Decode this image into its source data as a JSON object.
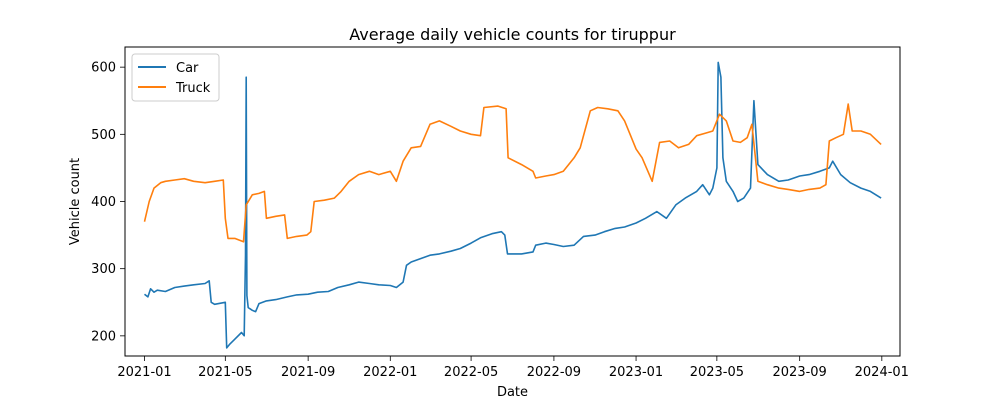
{
  "chart_data": {
    "type": "line",
    "title": "Average daily vehicle counts for tiruppur",
    "xlabel": "Date",
    "ylabel": "Vehicle count",
    "x_ticks": [
      "2021-01",
      "2021-05",
      "2021-09",
      "2022-01",
      "2022-05",
      "2022-09",
      "2023-01",
      "2023-05",
      "2023-09",
      "2024-01"
    ],
    "y_ticks": [
      200,
      300,
      400,
      500,
      600
    ],
    "xlim": [
      "2020-12-03",
      "2024-01-28"
    ],
    "ylim": [
      170,
      630
    ],
    "legend_position": "upper-left",
    "grid": false,
    "series": [
      {
        "name": "Car",
        "color": "#1f77b4",
        "points": [
          [
            "2021-01-01",
            262
          ],
          [
            "2021-01-06",
            258
          ],
          [
            "2021-01-10",
            270
          ],
          [
            "2021-01-15",
            265
          ],
          [
            "2021-01-20",
            268
          ],
          [
            "2021-02-01",
            266
          ],
          [
            "2021-02-15",
            272
          ],
          [
            "2021-03-01",
            274
          ],
          [
            "2021-03-15",
            276
          ],
          [
            "2021-04-01",
            278
          ],
          [
            "2021-04-07",
            282
          ],
          [
            "2021-04-10",
            250
          ],
          [
            "2021-04-15",
            247
          ],
          [
            "2021-05-01",
            250
          ],
          [
            "2021-05-03",
            182
          ],
          [
            "2021-05-08",
            188
          ],
          [
            "2021-05-15",
            195
          ],
          [
            "2021-05-25",
            205
          ],
          [
            "2021-05-29",
            200
          ],
          [
            "2021-05-31",
            320
          ],
          [
            "2021-06-01",
            585
          ],
          [
            "2021-06-02",
            260
          ],
          [
            "2021-06-04",
            242
          ],
          [
            "2021-06-10",
            238
          ],
          [
            "2021-06-15",
            236
          ],
          [
            "2021-06-20",
            248
          ],
          [
            "2021-07-01",
            252
          ],
          [
            "2021-07-15",
            254
          ],
          [
            "2021-08-01",
            258
          ],
          [
            "2021-08-15",
            261
          ],
          [
            "2021-09-01",
            262
          ],
          [
            "2021-09-15",
            265
          ],
          [
            "2021-10-01",
            266
          ],
          [
            "2021-10-15",
            272
          ],
          [
            "2021-11-01",
            276
          ],
          [
            "2021-11-15",
            280
          ],
          [
            "2021-12-01",
            278
          ],
          [
            "2021-12-15",
            276
          ],
          [
            "2022-01-01",
            275
          ],
          [
            "2022-01-10",
            272
          ],
          [
            "2022-01-20",
            280
          ],
          [
            "2022-01-25",
            305
          ],
          [
            "2022-02-01",
            310
          ],
          [
            "2022-02-15",
            315
          ],
          [
            "2022-03-01",
            320
          ],
          [
            "2022-03-15",
            322
          ],
          [
            "2022-04-01",
            326
          ],
          [
            "2022-04-15",
            330
          ],
          [
            "2022-05-01",
            338
          ],
          [
            "2022-05-15",
            346
          ],
          [
            "2022-06-01",
            352
          ],
          [
            "2022-06-15",
            355
          ],
          [
            "2022-06-20",
            350
          ],
          [
            "2022-06-24",
            322
          ],
          [
            "2022-07-15",
            322
          ],
          [
            "2022-08-01",
            325
          ],
          [
            "2022-08-05",
            335
          ],
          [
            "2022-08-20",
            338
          ],
          [
            "2022-09-01",
            336
          ],
          [
            "2022-09-15",
            333
          ],
          [
            "2022-10-01",
            335
          ],
          [
            "2022-10-15",
            348
          ],
          [
            "2022-11-01",
            350
          ],
          [
            "2022-11-15",
            355
          ],
          [
            "2022-12-01",
            360
          ],
          [
            "2022-12-15",
            362
          ],
          [
            "2023-01-01",
            368
          ],
          [
            "2023-01-15",
            375
          ],
          [
            "2023-02-01",
            385
          ],
          [
            "2023-02-15",
            375
          ],
          [
            "2023-03-01",
            395
          ],
          [
            "2023-03-15",
            405
          ],
          [
            "2023-04-01",
            415
          ],
          [
            "2023-04-10",
            425
          ],
          [
            "2023-04-20",
            410
          ],
          [
            "2023-04-25",
            420
          ],
          [
            "2023-05-01",
            450
          ],
          [
            "2023-05-03",
            607
          ],
          [
            "2023-05-07",
            585
          ],
          [
            "2023-05-10",
            465
          ],
          [
            "2023-05-15",
            430
          ],
          [
            "2023-05-25",
            415
          ],
          [
            "2023-06-01",
            400
          ],
          [
            "2023-06-10",
            405
          ],
          [
            "2023-06-20",
            420
          ],
          [
            "2023-06-25",
            550
          ],
          [
            "2023-07-01",
            455
          ],
          [
            "2023-07-15",
            440
          ],
          [
            "2023-08-01",
            430
          ],
          [
            "2023-08-15",
            432
          ],
          [
            "2023-09-01",
            438
          ],
          [
            "2023-09-15",
            440
          ],
          [
            "2023-10-01",
            445
          ],
          [
            "2023-10-15",
            450
          ],
          [
            "2023-10-20",
            460
          ],
          [
            "2023-11-01",
            440
          ],
          [
            "2023-11-15",
            428
          ],
          [
            "2023-12-01",
            420
          ],
          [
            "2023-12-15",
            415
          ],
          [
            "2023-12-31",
            405
          ]
        ]
      },
      {
        "name": "Truck",
        "color": "#ff7f0e",
        "points": [
          [
            "2021-01-01",
            370
          ],
          [
            "2021-01-08",
            400
          ],
          [
            "2021-01-15",
            420
          ],
          [
            "2021-01-25",
            428
          ],
          [
            "2021-02-01",
            430
          ],
          [
            "2021-02-15",
            432
          ],
          [
            "2021-03-01",
            434
          ],
          [
            "2021-03-15",
            430
          ],
          [
            "2021-04-01",
            428
          ],
          [
            "2021-04-15",
            430
          ],
          [
            "2021-04-28",
            432
          ],
          [
            "2021-05-01",
            375
          ],
          [
            "2021-05-05",
            345
          ],
          [
            "2021-05-15",
            345
          ],
          [
            "2021-05-28",
            340
          ],
          [
            "2021-06-01",
            395
          ],
          [
            "2021-06-10",
            410
          ],
          [
            "2021-06-20",
            412
          ],
          [
            "2021-06-28",
            415
          ],
          [
            "2021-07-01",
            375
          ],
          [
            "2021-07-15",
            378
          ],
          [
            "2021-07-28",
            380
          ],
          [
            "2021-08-01",
            345
          ],
          [
            "2021-08-15",
            348
          ],
          [
            "2021-08-30",
            350
          ],
          [
            "2021-09-05",
            355
          ],
          [
            "2021-09-10",
            400
          ],
          [
            "2021-09-25",
            402
          ],
          [
            "2021-10-10",
            405
          ],
          [
            "2021-10-20",
            415
          ],
          [
            "2021-11-01",
            430
          ],
          [
            "2021-11-15",
            440
          ],
          [
            "2021-12-01",
            445
          ],
          [
            "2021-12-15",
            440
          ],
          [
            "2022-01-01",
            445
          ],
          [
            "2022-01-10",
            430
          ],
          [
            "2022-01-20",
            460
          ],
          [
            "2022-02-01",
            480
          ],
          [
            "2022-02-15",
            482
          ],
          [
            "2022-03-01",
            515
          ],
          [
            "2022-03-15",
            520
          ],
          [
            "2022-04-01",
            512
          ],
          [
            "2022-04-15",
            505
          ],
          [
            "2022-05-01",
            500
          ],
          [
            "2022-05-15",
            498
          ],
          [
            "2022-05-20",
            540
          ],
          [
            "2022-06-10",
            542
          ],
          [
            "2022-06-22",
            538
          ],
          [
            "2022-06-25",
            465
          ],
          [
            "2022-07-15",
            455
          ],
          [
            "2022-08-01",
            445
          ],
          [
            "2022-08-05",
            435
          ],
          [
            "2022-08-20",
            438
          ],
          [
            "2022-09-01",
            440
          ],
          [
            "2022-09-15",
            445
          ],
          [
            "2022-10-01",
            465
          ],
          [
            "2022-10-10",
            480
          ],
          [
            "2022-10-25",
            535
          ],
          [
            "2022-11-05",
            540
          ],
          [
            "2022-11-20",
            538
          ],
          [
            "2022-12-05",
            535
          ],
          [
            "2022-12-15",
            520
          ],
          [
            "2023-01-01",
            478
          ],
          [
            "2023-01-10",
            465
          ],
          [
            "2023-01-25",
            430
          ],
          [
            "2023-02-05",
            488
          ],
          [
            "2023-02-20",
            490
          ],
          [
            "2023-03-05",
            480
          ],
          [
            "2023-03-20",
            485
          ],
          [
            "2023-04-01",
            498
          ],
          [
            "2023-04-15",
            502
          ],
          [
            "2023-04-25",
            505
          ],
          [
            "2023-05-05",
            530
          ],
          [
            "2023-05-15",
            520
          ],
          [
            "2023-05-25",
            490
          ],
          [
            "2023-06-05",
            488
          ],
          [
            "2023-06-15",
            495
          ],
          [
            "2023-06-22",
            515
          ],
          [
            "2023-07-01",
            430
          ],
          [
            "2023-07-15",
            425
          ],
          [
            "2023-08-01",
            420
          ],
          [
            "2023-08-15",
            418
          ],
          [
            "2023-09-01",
            415
          ],
          [
            "2023-09-15",
            418
          ],
          [
            "2023-10-01",
            420
          ],
          [
            "2023-10-10",
            425
          ],
          [
            "2023-10-15",
            490
          ],
          [
            "2023-10-25",
            495
          ],
          [
            "2023-11-05",
            500
          ],
          [
            "2023-11-12",
            545
          ],
          [
            "2023-11-18",
            505
          ],
          [
            "2023-12-01",
            505
          ],
          [
            "2023-12-15",
            500
          ],
          [
            "2023-12-31",
            485
          ]
        ]
      }
    ]
  }
}
